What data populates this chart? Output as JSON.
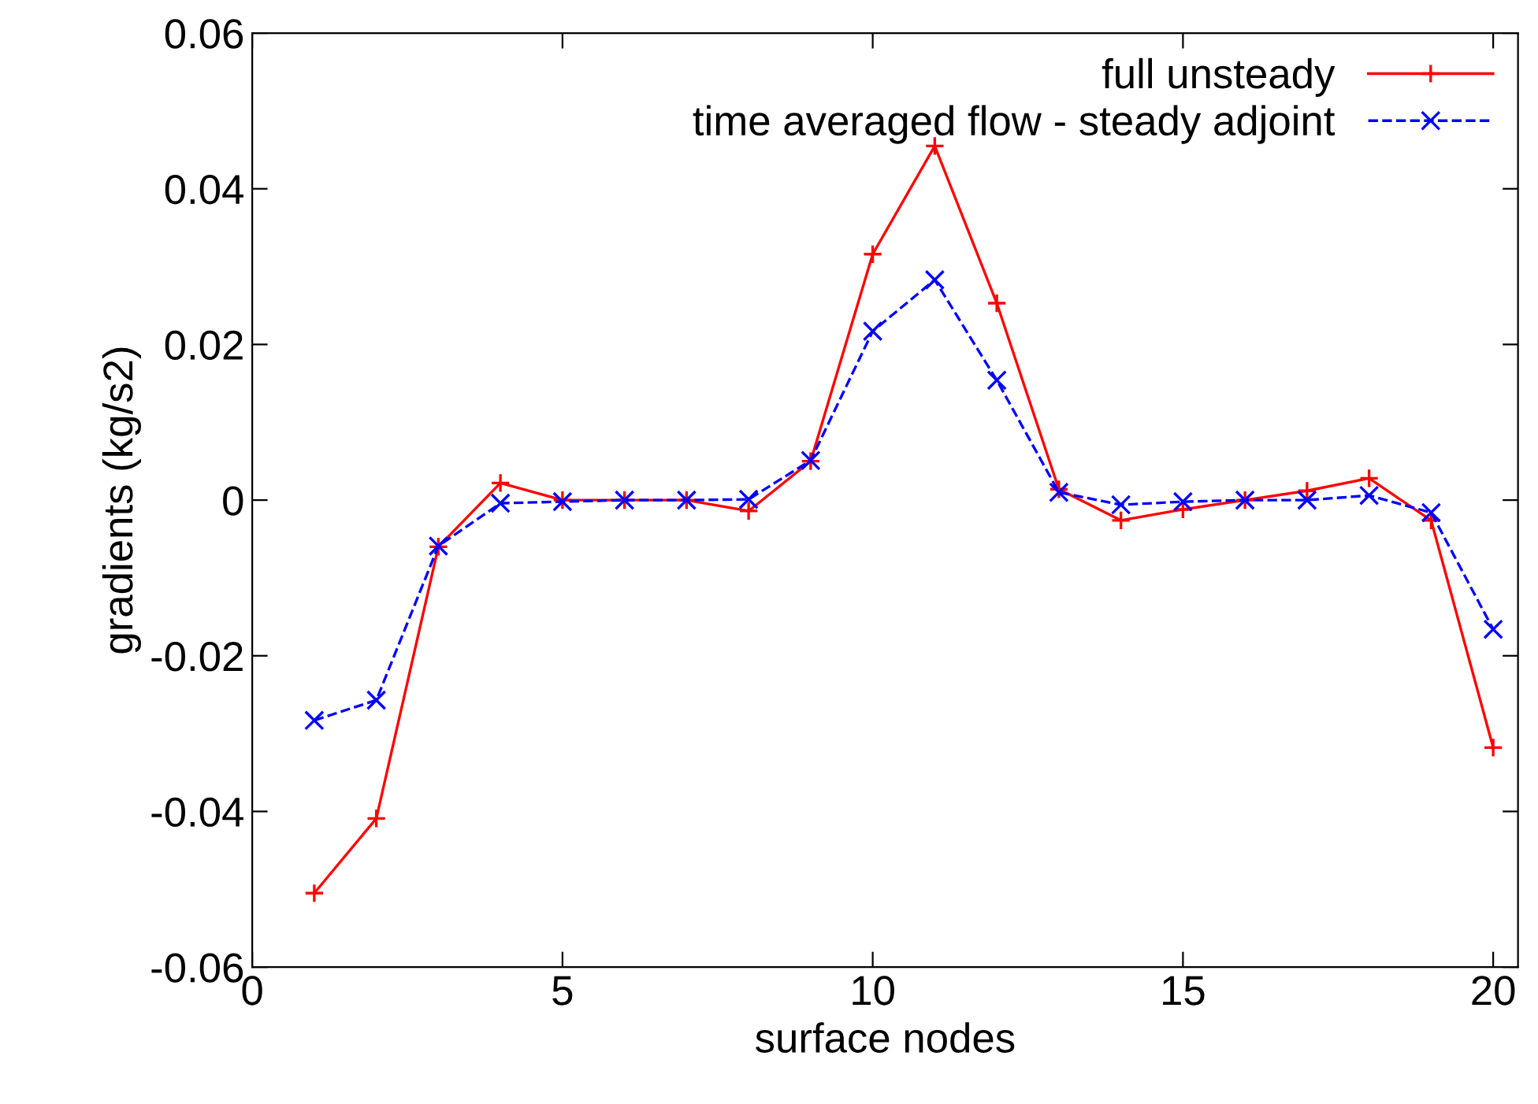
{
  "chart_data": {
    "type": "line",
    "xlabel": "surface nodes",
    "ylabel": "gradients (kg/s2)",
    "x": [
      1,
      2,
      3,
      4,
      5,
      6,
      7,
      8,
      9,
      10,
      11,
      12,
      13,
      14,
      15,
      16,
      17,
      18,
      19,
      20
    ],
    "series": [
      {
        "name": "full unsteady",
        "color": "#ff0000",
        "marker": "plus",
        "line_style": "solid",
        "values": [
          -0.0505,
          -0.0409,
          -0.006,
          0.0022,
          0,
          0,
          0,
          -0.0014,
          0.005,
          0.0316,
          0.0455,
          0.0253,
          0.0014,
          -0.0026,
          -0.0012,
          0,
          0.0012,
          0.0028,
          -0.0026,
          -0.0318
        ]
      },
      {
        "name": "time averaged flow - steady adjoint",
        "color": "#0000ff",
        "marker": "cross",
        "line_style": "dashed",
        "values": [
          -0.0283,
          -0.0257,
          -0.0059,
          -0.0004,
          -0.0002,
          0,
          0,
          0.0001,
          0.0051,
          0.0217,
          0.0283,
          0.0154,
          0.001,
          -0.0006,
          -0.0002,
          0,
          0,
          0.0006,
          -0.0016,
          -0.0166
        ]
      }
    ],
    "xlim": [
      0,
      20.4
    ],
    "xticks": [
      0,
      5,
      10,
      15,
      20
    ],
    "ylim": [
      -0.06,
      0.06
    ],
    "yticks": [
      -0.06,
      -0.04,
      -0.02,
      0,
      0.02,
      0.04,
      0.06
    ],
    "legend": "top right",
    "grid": false
  }
}
